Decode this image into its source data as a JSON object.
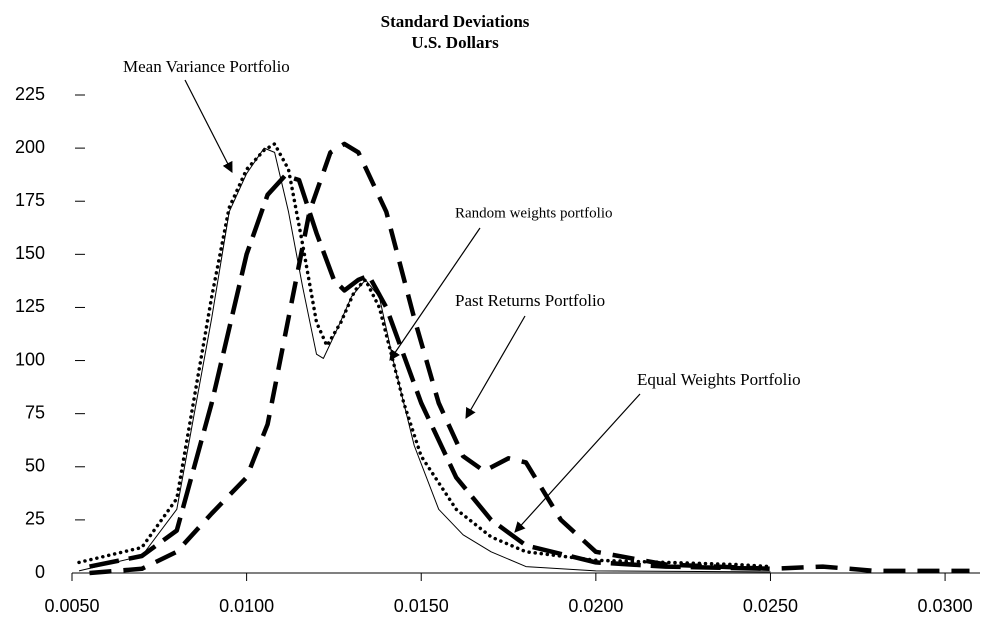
{
  "chart_data": {
    "type": "line",
    "title": "Standard Deviations",
    "subtitle": "U.S. Dollars",
    "xlim": [
      0.005,
      0.031
    ],
    "ylim": [
      0,
      225
    ],
    "xticks": [
      {
        "value": 0.005,
        "label": "0.0050"
      },
      {
        "value": 0.01,
        "label": "0.0100"
      },
      {
        "value": 0.015,
        "label": "0.0150"
      },
      {
        "value": 0.02,
        "label": "0.0200"
      },
      {
        "value": 0.025,
        "label": "0.0250"
      },
      {
        "value": 0.03,
        "label": "0.0300"
      }
    ],
    "yticks": [
      0,
      25,
      50,
      75,
      100,
      125,
      150,
      175,
      200,
      225
    ],
    "grid": false,
    "series": [
      {
        "name": "Mean Variance Portfolio",
        "color": "#000000",
        "style": "solid",
        "x": [
          0.0052,
          0.007,
          0.008,
          0.009,
          0.0095,
          0.01,
          0.0105,
          0.0108,
          0.0112,
          0.0116,
          0.012,
          0.0122,
          0.0126,
          0.013,
          0.0134,
          0.0138,
          0.0142,
          0.0148,
          0.0155,
          0.0162,
          0.017,
          0.018,
          0.02,
          0.025
        ],
        "values": [
          1,
          8,
          30,
          120,
          170,
          188,
          200,
          198,
          170,
          135,
          103,
          101,
          115,
          130,
          138,
          130,
          100,
          60,
          30,
          18,
          10,
          3,
          1,
          0.5
        ]
      },
      {
        "name": "Random weights portfolio",
        "color": "#000000",
        "style": "dotted",
        "x": [
          0.0052,
          0.007,
          0.008,
          0.009,
          0.0095,
          0.01,
          0.0105,
          0.0108,
          0.0112,
          0.0116,
          0.012,
          0.0123,
          0.0127,
          0.0131,
          0.0134,
          0.0138,
          0.0145,
          0.015,
          0.016,
          0.017,
          0.018,
          0.02,
          0.022,
          0.024,
          0.025
        ],
        "values": [
          5,
          12,
          35,
          130,
          172,
          190,
          199,
          202,
          190,
          155,
          118,
          107,
          118,
          133,
          138,
          125,
          80,
          55,
          30,
          17,
          10,
          6,
          5,
          4,
          3
        ]
      },
      {
        "name": "Past Returns Portfolio",
        "color": "#000000",
        "style": "dash",
        "x": [
          0.0055,
          0.007,
          0.008,
          0.009,
          0.01,
          0.0106,
          0.0112,
          0.0118,
          0.0124,
          0.0128,
          0.0132,
          0.014,
          0.0148,
          0.0155,
          0.0162,
          0.0168,
          0.0175,
          0.018,
          0.019,
          0.02,
          0.022,
          0.025,
          0.0265,
          0.028,
          0.0307
        ],
        "values": [
          0,
          2,
          10,
          28,
          45,
          70,
          120,
          170,
          198,
          202,
          198,
          170,
          120,
          80,
          55,
          48,
          54,
          52,
          25,
          10,
          4,
          2,
          3,
          1,
          1
        ]
      },
      {
        "name": "Equal Weights Portfolio",
        "color": "#000000",
        "style": "long-dash",
        "x": [
          0.0055,
          0.007,
          0.008,
          0.009,
          0.01,
          0.0106,
          0.0111,
          0.0115,
          0.012,
          0.0125,
          0.0128,
          0.0132,
          0.0135,
          0.014,
          0.015,
          0.016,
          0.017,
          0.018,
          0.02,
          0.022,
          0.025
        ],
        "values": [
          3,
          8,
          20,
          80,
          150,
          178,
          187,
          185,
          160,
          138,
          133,
          138,
          140,
          125,
          80,
          45,
          25,
          13,
          5,
          3,
          2
        ]
      }
    ]
  }
}
